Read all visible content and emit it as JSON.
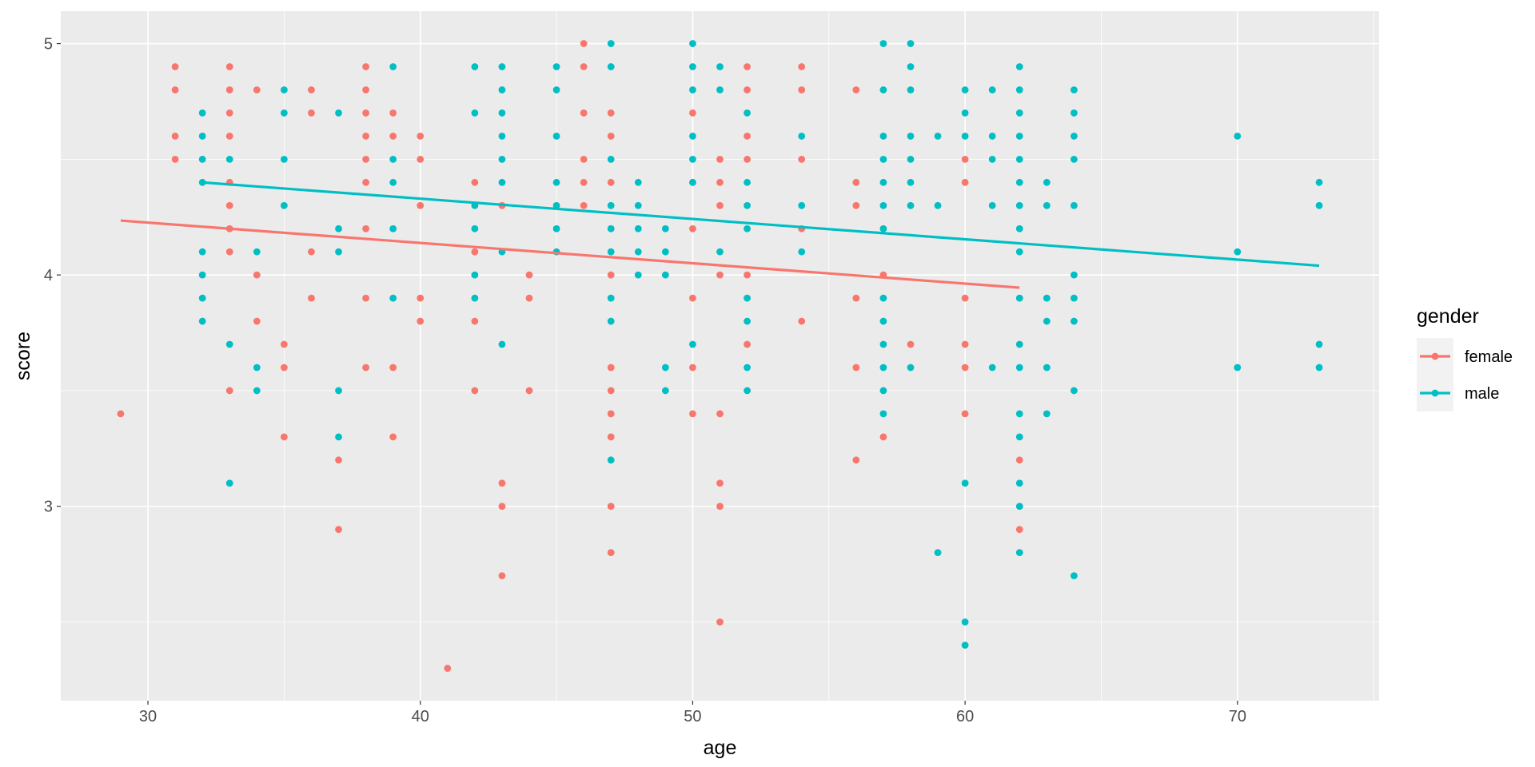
{
  "chart_data": {
    "type": "scatter",
    "title": "",
    "xlabel": "age",
    "ylabel": "score",
    "xlim": [
      26.8,
      75.2
    ],
    "ylim": [
      2.16,
      5.14
    ],
    "xticks": [
      30,
      40,
      50,
      60,
      70
    ],
    "yticks": [
      3,
      4,
      5
    ],
    "grid": true,
    "legend": {
      "title": "gender",
      "placement": "right"
    },
    "colors": {
      "female": "#F8766D",
      "male": "#00BFC4",
      "panel": "#EBEBEB",
      "grid": "#FFFFFF"
    },
    "series": [
      {
        "name": "female",
        "points": [
          [
            29,
            3.4
          ],
          [
            31,
            4.9
          ],
          [
            31,
            4.8
          ],
          [
            31,
            4.6
          ],
          [
            31,
            4.5
          ],
          [
            33,
            4.9
          ],
          [
            33,
            4.8
          ],
          [
            33,
            4.7
          ],
          [
            33,
            4.6
          ],
          [
            33,
            4.4
          ],
          [
            33,
            4.3
          ],
          [
            33,
            4.2
          ],
          [
            33,
            4.1
          ],
          [
            33,
            3.5
          ],
          [
            34,
            4.8
          ],
          [
            34,
            4.0
          ],
          [
            34,
            3.8
          ],
          [
            35,
            3.7
          ],
          [
            35,
            3.6
          ],
          [
            35,
            3.3
          ],
          [
            36,
            4.8
          ],
          [
            36,
            4.7
          ],
          [
            36,
            4.1
          ],
          [
            36,
            3.9
          ],
          [
            37,
            3.2
          ],
          [
            37,
            2.9
          ],
          [
            38,
            4.9
          ],
          [
            38,
            4.8
          ],
          [
            38,
            4.7
          ],
          [
            38,
            4.6
          ],
          [
            38,
            4.5
          ],
          [
            38,
            4.4
          ],
          [
            38,
            4.2
          ],
          [
            38,
            3.9
          ],
          [
            38,
            3.6
          ],
          [
            39,
            4.7
          ],
          [
            39,
            4.6
          ],
          [
            39,
            3.6
          ],
          [
            39,
            3.3
          ],
          [
            40,
            4.6
          ],
          [
            40,
            4.5
          ],
          [
            40,
            4.3
          ],
          [
            40,
            3.9
          ],
          [
            40,
            3.8
          ],
          [
            41,
            2.3
          ],
          [
            42,
            4.4
          ],
          [
            42,
            4.1
          ],
          [
            42,
            3.8
          ],
          [
            42,
            3.5
          ],
          [
            43,
            4.3
          ],
          [
            43,
            3.1
          ],
          [
            43,
            3.0
          ],
          [
            43,
            2.7
          ],
          [
            44,
            4.0
          ],
          [
            44,
            3.9
          ],
          [
            44,
            3.5
          ],
          [
            46,
            5.0
          ],
          [
            46,
            4.9
          ],
          [
            46,
            4.7
          ],
          [
            46,
            4.5
          ],
          [
            46,
            4.4
          ],
          [
            46,
            4.3
          ],
          [
            47,
            4.7
          ],
          [
            47,
            4.6
          ],
          [
            47,
            4.4
          ],
          [
            47,
            4.0
          ],
          [
            47,
            3.6
          ],
          [
            47,
            3.5
          ],
          [
            47,
            3.4
          ],
          [
            47,
            3.3
          ],
          [
            47,
            3.0
          ],
          [
            47,
            2.8
          ],
          [
            50,
            4.7
          ],
          [
            50,
            4.4
          ],
          [
            50,
            4.2
          ],
          [
            50,
            3.9
          ],
          [
            50,
            3.6
          ],
          [
            50,
            3.4
          ],
          [
            51,
            4.5
          ],
          [
            51,
            4.4
          ],
          [
            51,
            4.3
          ],
          [
            51,
            4.0
          ],
          [
            51,
            3.4
          ],
          [
            51,
            3.1
          ],
          [
            51,
            3.0
          ],
          [
            51,
            2.5
          ],
          [
            52,
            4.9
          ],
          [
            52,
            4.8
          ],
          [
            52,
            4.6
          ],
          [
            52,
            4.5
          ],
          [
            52,
            4.0
          ],
          [
            52,
            3.7
          ],
          [
            54,
            4.9
          ],
          [
            54,
            4.8
          ],
          [
            54,
            4.5
          ],
          [
            54,
            4.2
          ],
          [
            54,
            3.8
          ],
          [
            56,
            4.8
          ],
          [
            56,
            4.4
          ],
          [
            56,
            4.3
          ],
          [
            56,
            3.9
          ],
          [
            56,
            3.6
          ],
          [
            56,
            3.2
          ],
          [
            57,
            4.0
          ],
          [
            57,
            3.3
          ],
          [
            58,
            3.7
          ],
          [
            60,
            4.5
          ],
          [
            60,
            4.4
          ],
          [
            60,
            3.9
          ],
          [
            60,
            3.7
          ],
          [
            60,
            3.6
          ],
          [
            60,
            3.4
          ],
          [
            62,
            3.2
          ],
          [
            62,
            2.9
          ]
        ],
        "trend": {
          "x": [
            29,
            62
          ],
          "y": [
            4.235,
            3.945
          ]
        }
      },
      {
        "name": "male",
        "points": [
          [
            32,
            4.7
          ],
          [
            32,
            4.6
          ],
          [
            32,
            4.5
          ],
          [
            32,
            4.4
          ],
          [
            32,
            4.1
          ],
          [
            32,
            4.0
          ],
          [
            32,
            3.9
          ],
          [
            32,
            3.8
          ],
          [
            33,
            4.5
          ],
          [
            33,
            3.7
          ],
          [
            33,
            3.1
          ],
          [
            34,
            4.1
          ],
          [
            34,
            3.6
          ],
          [
            34,
            3.5
          ],
          [
            35,
            4.8
          ],
          [
            35,
            4.7
          ],
          [
            35,
            4.5
          ],
          [
            35,
            4.3
          ],
          [
            37,
            4.7
          ],
          [
            37,
            4.2
          ],
          [
            37,
            4.1
          ],
          [
            37,
            3.5
          ],
          [
            37,
            3.3
          ],
          [
            39,
            4.9
          ],
          [
            39,
            4.5
          ],
          [
            39,
            4.4
          ],
          [
            39,
            4.2
          ],
          [
            39,
            3.9
          ],
          [
            42,
            4.9
          ],
          [
            42,
            4.7
          ],
          [
            42,
            4.3
          ],
          [
            42,
            4.2
          ],
          [
            42,
            4.0
          ],
          [
            42,
            3.9
          ],
          [
            43,
            4.9
          ],
          [
            43,
            4.8
          ],
          [
            43,
            4.7
          ],
          [
            43,
            4.6
          ],
          [
            43,
            4.5
          ],
          [
            43,
            4.4
          ],
          [
            43,
            4.1
          ],
          [
            43,
            3.7
          ],
          [
            45,
            4.9
          ],
          [
            45,
            4.8
          ],
          [
            45,
            4.6
          ],
          [
            45,
            4.4
          ],
          [
            45,
            4.3
          ],
          [
            45,
            4.2
          ],
          [
            45,
            4.1
          ],
          [
            47,
            5.0
          ],
          [
            47,
            4.9
          ],
          [
            47,
            4.5
          ],
          [
            47,
            4.3
          ],
          [
            47,
            4.2
          ],
          [
            47,
            4.1
          ],
          [
            47,
            3.9
          ],
          [
            47,
            3.8
          ],
          [
            47,
            3.2
          ],
          [
            48,
            4.4
          ],
          [
            48,
            4.3
          ],
          [
            48,
            4.2
          ],
          [
            48,
            4.1
          ],
          [
            48,
            4.0
          ],
          [
            49,
            4.2
          ],
          [
            49,
            4.1
          ],
          [
            49,
            4.0
          ],
          [
            49,
            3.6
          ],
          [
            49,
            3.5
          ],
          [
            50,
            5.0
          ],
          [
            50,
            4.9
          ],
          [
            50,
            4.8
          ],
          [
            50,
            4.6
          ],
          [
            50,
            4.5
          ],
          [
            50,
            4.4
          ],
          [
            50,
            3.7
          ],
          [
            51,
            4.9
          ],
          [
            51,
            4.8
          ],
          [
            51,
            4.1
          ],
          [
            52,
            4.7
          ],
          [
            52,
            4.4
          ],
          [
            52,
            4.3
          ],
          [
            52,
            4.2
          ],
          [
            52,
            3.9
          ],
          [
            52,
            3.8
          ],
          [
            52,
            3.6
          ],
          [
            52,
            3.5
          ],
          [
            54,
            4.6
          ],
          [
            54,
            4.3
          ],
          [
            54,
            4.1
          ],
          [
            57,
            5.0
          ],
          [
            57,
            4.8
          ],
          [
            57,
            4.6
          ],
          [
            57,
            4.5
          ],
          [
            57,
            4.4
          ],
          [
            57,
            4.3
          ],
          [
            57,
            4.2
          ],
          [
            57,
            3.9
          ],
          [
            57,
            3.8
          ],
          [
            57,
            3.7
          ],
          [
            57,
            3.6
          ],
          [
            57,
            3.5
          ],
          [
            57,
            3.4
          ],
          [
            58,
            5.0
          ],
          [
            58,
            4.9
          ],
          [
            58,
            4.8
          ],
          [
            58,
            4.6
          ],
          [
            58,
            4.5
          ],
          [
            58,
            4.4
          ],
          [
            58,
            4.3
          ],
          [
            58,
            3.6
          ],
          [
            59,
            4.6
          ],
          [
            59,
            4.3
          ],
          [
            59,
            2.8
          ],
          [
            60,
            4.8
          ],
          [
            60,
            4.7
          ],
          [
            60,
            4.6
          ],
          [
            60,
            3.1
          ],
          [
            60,
            2.5
          ],
          [
            60,
            2.4
          ],
          [
            61,
            4.8
          ],
          [
            61,
            4.6
          ],
          [
            61,
            4.5
          ],
          [
            61,
            4.3
          ],
          [
            61,
            3.6
          ],
          [
            62,
            4.9
          ],
          [
            62,
            4.8
          ],
          [
            62,
            4.7
          ],
          [
            62,
            4.6
          ],
          [
            62,
            4.5
          ],
          [
            62,
            4.4
          ],
          [
            62,
            4.3
          ],
          [
            62,
            4.2
          ],
          [
            62,
            4.1
          ],
          [
            62,
            3.9
          ],
          [
            62,
            3.7
          ],
          [
            62,
            3.6
          ],
          [
            62,
            3.4
          ],
          [
            62,
            3.3
          ],
          [
            62,
            3.1
          ],
          [
            62,
            3.0
          ],
          [
            62,
            2.8
          ],
          [
            63,
            4.4
          ],
          [
            63,
            4.3
          ],
          [
            63,
            3.9
          ],
          [
            63,
            3.8
          ],
          [
            63,
            3.6
          ],
          [
            63,
            3.4
          ],
          [
            64,
            4.8
          ],
          [
            64,
            4.7
          ],
          [
            64,
            4.6
          ],
          [
            64,
            4.5
          ],
          [
            64,
            4.3
          ],
          [
            64,
            4.0
          ],
          [
            64,
            3.9
          ],
          [
            64,
            3.8
          ],
          [
            64,
            3.5
          ],
          [
            64,
            2.7
          ],
          [
            70,
            4.6
          ],
          [
            70,
            4.1
          ],
          [
            70,
            3.6
          ],
          [
            73,
            4.4
          ],
          [
            73,
            4.3
          ],
          [
            73,
            3.7
          ],
          [
            73,
            3.6
          ]
        ],
        "trend": {
          "x": [
            32,
            73
          ],
          "y": [
            4.4,
            4.04
          ]
        }
      }
    ]
  }
}
